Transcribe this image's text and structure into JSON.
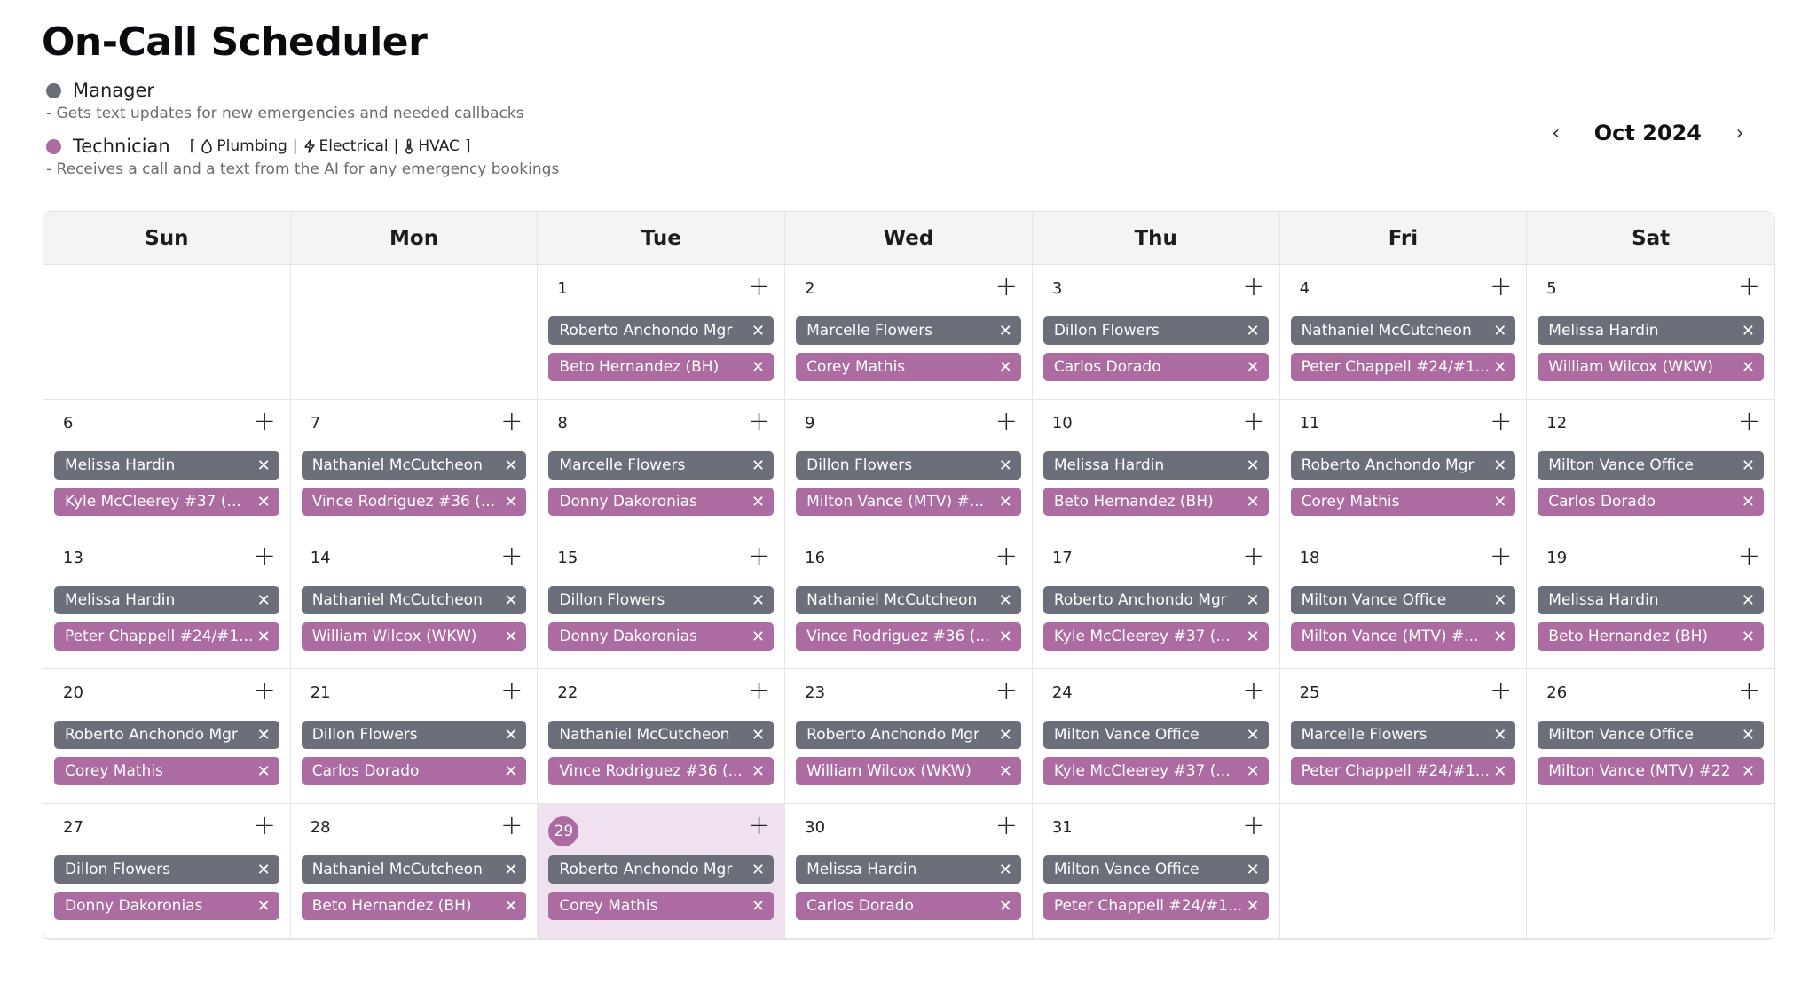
{
  "app": {
    "title": "On-Call Scheduler"
  },
  "legend": {
    "manager": {
      "label": "Manager",
      "color": "#6a6f7a",
      "description": "- Gets text updates for new emergencies and needed callbacks"
    },
    "technician": {
      "label": "Technician",
      "color": "#ad6ca1",
      "open_bracket": "[",
      "close_bracket": "]",
      "separator": "|",
      "skills": [
        {
          "icon": "droplet-icon",
          "label": "Plumbing"
        },
        {
          "icon": "lightning-icon",
          "label": "Electrical"
        },
        {
          "icon": "thermometer-icon",
          "label": "HVAC"
        }
      ],
      "description": "- Receives a call and a text from the AI for any emergency bookings"
    }
  },
  "nav": {
    "month": "Oct 2024",
    "prev": "‹",
    "next": "›"
  },
  "weekdays": [
    "Sun",
    "Mon",
    "Tue",
    "Wed",
    "Thu",
    "Fri",
    "Sat"
  ],
  "today": "29",
  "icons": {
    "add": "+",
    "remove": "✕"
  },
  "cells": [
    {
      "day": "",
      "manager": "",
      "tech": ""
    },
    {
      "day": "",
      "manager": "",
      "tech": ""
    },
    {
      "day": "1",
      "manager": "Roberto Anchondo Mgr",
      "tech": "Beto Hernandez (BH)"
    },
    {
      "day": "2",
      "manager": "Marcelle Flowers",
      "tech": "Corey Mathis"
    },
    {
      "day": "3",
      "manager": "Dillon Flowers",
      "tech": "Carlos Dorado"
    },
    {
      "day": "4",
      "manager": "Nathaniel McCutcheon",
      "tech": "Peter Chappell #24/#1..."
    },
    {
      "day": "5",
      "manager": "Melissa Hardin",
      "tech": "William Wilcox (WKW)"
    },
    {
      "day": "6",
      "manager": "Melissa Hardin",
      "tech": "Kyle McCleerey #37 (..."
    },
    {
      "day": "7",
      "manager": "Nathaniel McCutcheon",
      "tech": "Vince Rodriguez #36 (..."
    },
    {
      "day": "8",
      "manager": "Marcelle Flowers",
      "tech": "Donny Dakoronias"
    },
    {
      "day": "9",
      "manager": "Dillon Flowers",
      "tech": "Milton Vance (MTV) #..."
    },
    {
      "day": "10",
      "manager": "Melissa Hardin",
      "tech": "Beto Hernandez (BH)"
    },
    {
      "day": "11",
      "manager": "Roberto Anchondo Mgr",
      "tech": "Corey Mathis"
    },
    {
      "day": "12",
      "manager": "Milton Vance Office",
      "tech": "Carlos Dorado"
    },
    {
      "day": "13",
      "manager": "Melissa Hardin",
      "tech": "Peter Chappell #24/#1..."
    },
    {
      "day": "14",
      "manager": "Nathaniel McCutcheon",
      "tech": "William Wilcox (WKW)"
    },
    {
      "day": "15",
      "manager": "Dillon Flowers",
      "tech": "Donny Dakoronias"
    },
    {
      "day": "16",
      "manager": "Nathaniel McCutcheon",
      "tech": "Vince Rodriguez #36 (..."
    },
    {
      "day": "17",
      "manager": "Roberto Anchondo Mgr",
      "tech": "Kyle McCleerey #37 (..."
    },
    {
      "day": "18",
      "manager": "Milton Vance Office",
      "tech": "Milton Vance (MTV) #..."
    },
    {
      "day": "19",
      "manager": "Melissa Hardin",
      "tech": "Beto Hernandez (BH)"
    },
    {
      "day": "20",
      "manager": "Roberto Anchondo Mgr",
      "tech": "Corey Mathis"
    },
    {
      "day": "21",
      "manager": "Dillon Flowers",
      "tech": "Carlos Dorado"
    },
    {
      "day": "22",
      "manager": "Nathaniel McCutcheon",
      "tech": "Vince Rodriguez #36 (..."
    },
    {
      "day": "23",
      "manager": "Roberto Anchondo Mgr",
      "tech": "William Wilcox (WKW)"
    },
    {
      "day": "24",
      "manager": "Milton Vance Office",
      "tech": "Kyle McCleerey #37 (..."
    },
    {
      "day": "25",
      "manager": "Marcelle Flowers",
      "tech": "Peter Chappell #24/#1..."
    },
    {
      "day": "26",
      "manager": "Milton Vance Office",
      "tech": "Milton Vance (MTV) #22"
    },
    {
      "day": "27",
      "manager": "Dillon Flowers",
      "tech": "Donny Dakoronias"
    },
    {
      "day": "28",
      "manager": "Nathaniel McCutcheon",
      "tech": "Beto Hernandez (BH)"
    },
    {
      "day": "29",
      "manager": "Roberto Anchondo Mgr",
      "tech": "Corey Mathis"
    },
    {
      "day": "30",
      "manager": "Melissa Hardin",
      "tech": "Carlos Dorado"
    },
    {
      "day": "31",
      "manager": "Milton Vance Office",
      "tech": "Peter Chappell #24/#1..."
    },
    {
      "day": "",
      "manager": "",
      "tech": ""
    },
    {
      "day": "",
      "manager": "",
      "tech": ""
    }
  ]
}
